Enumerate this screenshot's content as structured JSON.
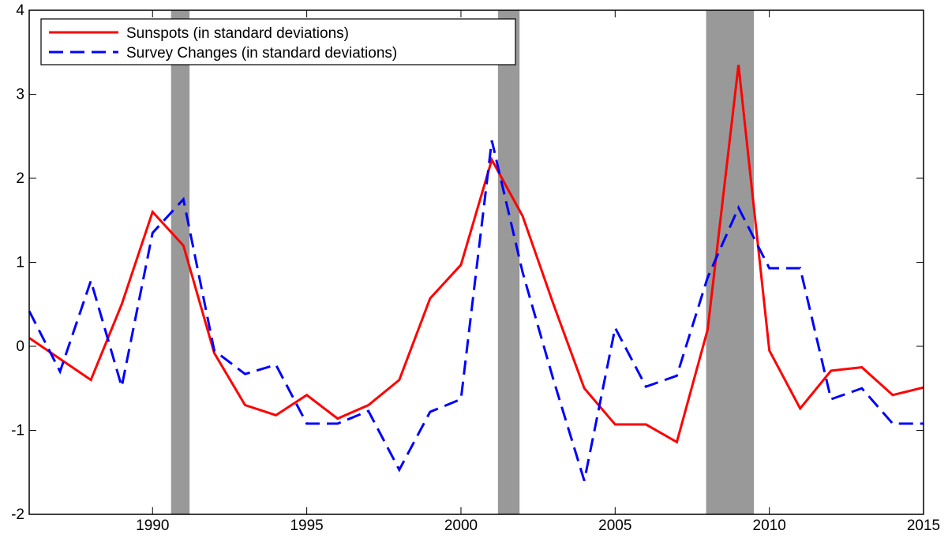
{
  "chart_data": {
    "type": "line",
    "x": [
      1986,
      1987,
      1988,
      1989,
      1990,
      1991,
      1992,
      1993,
      1994,
      1995,
      1996,
      1997,
      1998,
      1999,
      2000,
      2001,
      2002,
      2003,
      2004,
      2005,
      2006,
      2007,
      2008,
      2009,
      2010,
      2011,
      2012,
      2013,
      2014,
      2015
    ],
    "series": [
      {
        "name": "Sunspots (in standard deviations)",
        "color": "#ff0000",
        "dash": "solid",
        "values": [
          0.1,
          -0.15,
          -0.4,
          0.5,
          1.6,
          1.2,
          -0.08,
          -0.7,
          -0.82,
          -0.58,
          -0.86,
          -0.7,
          -0.4,
          0.57,
          0.97,
          2.22,
          1.55,
          0.5,
          -0.5,
          -0.93,
          -0.93,
          -1.14,
          0.2,
          3.35,
          -0.05,
          -0.74,
          -0.29,
          -0.25,
          -0.58,
          -0.49
        ]
      },
      {
        "name": "Survey Changes (in standard deviations)",
        "color": "#0000ff",
        "dash": "dashed",
        "values": [
          0.42,
          -0.3,
          0.78,
          -0.48,
          1.35,
          1.75,
          -0.05,
          -0.33,
          -0.22,
          -0.92,
          -0.92,
          -0.77,
          -1.47,
          -0.78,
          -0.63,
          2.45,
          0.88,
          -0.4,
          -1.6,
          0.22,
          -0.48,
          -0.35,
          0.82,
          1.65,
          0.93,
          0.93,
          -0.63,
          -0.5,
          -0.92,
          -0.92
        ]
      }
    ],
    "shaded_spans": [
      [
        1990.6,
        1991.2
      ],
      [
        2001.2,
        2001.9
      ],
      [
        2007.95,
        2009.5
      ]
    ],
    "shade_color": "#999999",
    "xlim": [
      1986,
      2015
    ],
    "xticks": [
      1990,
      1995,
      2000,
      2005,
      2010,
      2015
    ],
    "ylim": [
      -2,
      4
    ],
    "yticks": [
      -2,
      -1,
      0,
      1,
      2,
      3,
      4
    ],
    "legend": "upper left",
    "grid": false
  }
}
